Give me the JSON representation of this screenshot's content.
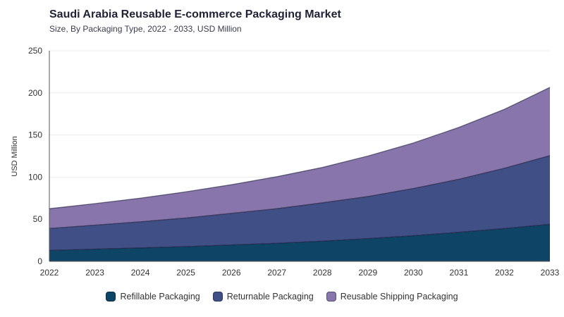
{
  "header": {
    "title": "Saudi Arabia Reusable E-commerce Packaging Market",
    "subtitle": "Size, By Packaging Type, 2022 - 2033, USD Million"
  },
  "chart_data": {
    "type": "area",
    "stacked": true,
    "x": [
      "2022",
      "2023",
      "2024",
      "2025",
      "2026",
      "2027",
      "2028",
      "2029",
      "2030",
      "2031",
      "2032",
      "2033"
    ],
    "ylabel": "USD Million",
    "ylim": [
      0,
      250
    ],
    "yticks": [
      0,
      50,
      100,
      150,
      200,
      250
    ],
    "grid": true,
    "legend_position": "bottom-center",
    "series": [
      {
        "name": "Refillable Packaging",
        "color": "#0e4466",
        "values": [
          13,
          14.5,
          16,
          17.5,
          19.5,
          21.5,
          24,
          27,
          30.5,
          34.5,
          39,
          44
        ]
      },
      {
        "name": "Returnable Packaging",
        "color": "#414f87",
        "values": [
          26,
          28.5,
          31,
          34,
          37.5,
          41,
          45.5,
          50,
          56,
          63,
          71.5,
          81.5
        ]
      },
      {
        "name": "Reusable Shipping Packaging",
        "color": "#8875ab",
        "values": [
          23.5,
          25.5,
          28,
          31,
          34,
          38,
          42,
          48,
          54,
          61.5,
          70,
          81
        ]
      }
    ]
  }
}
